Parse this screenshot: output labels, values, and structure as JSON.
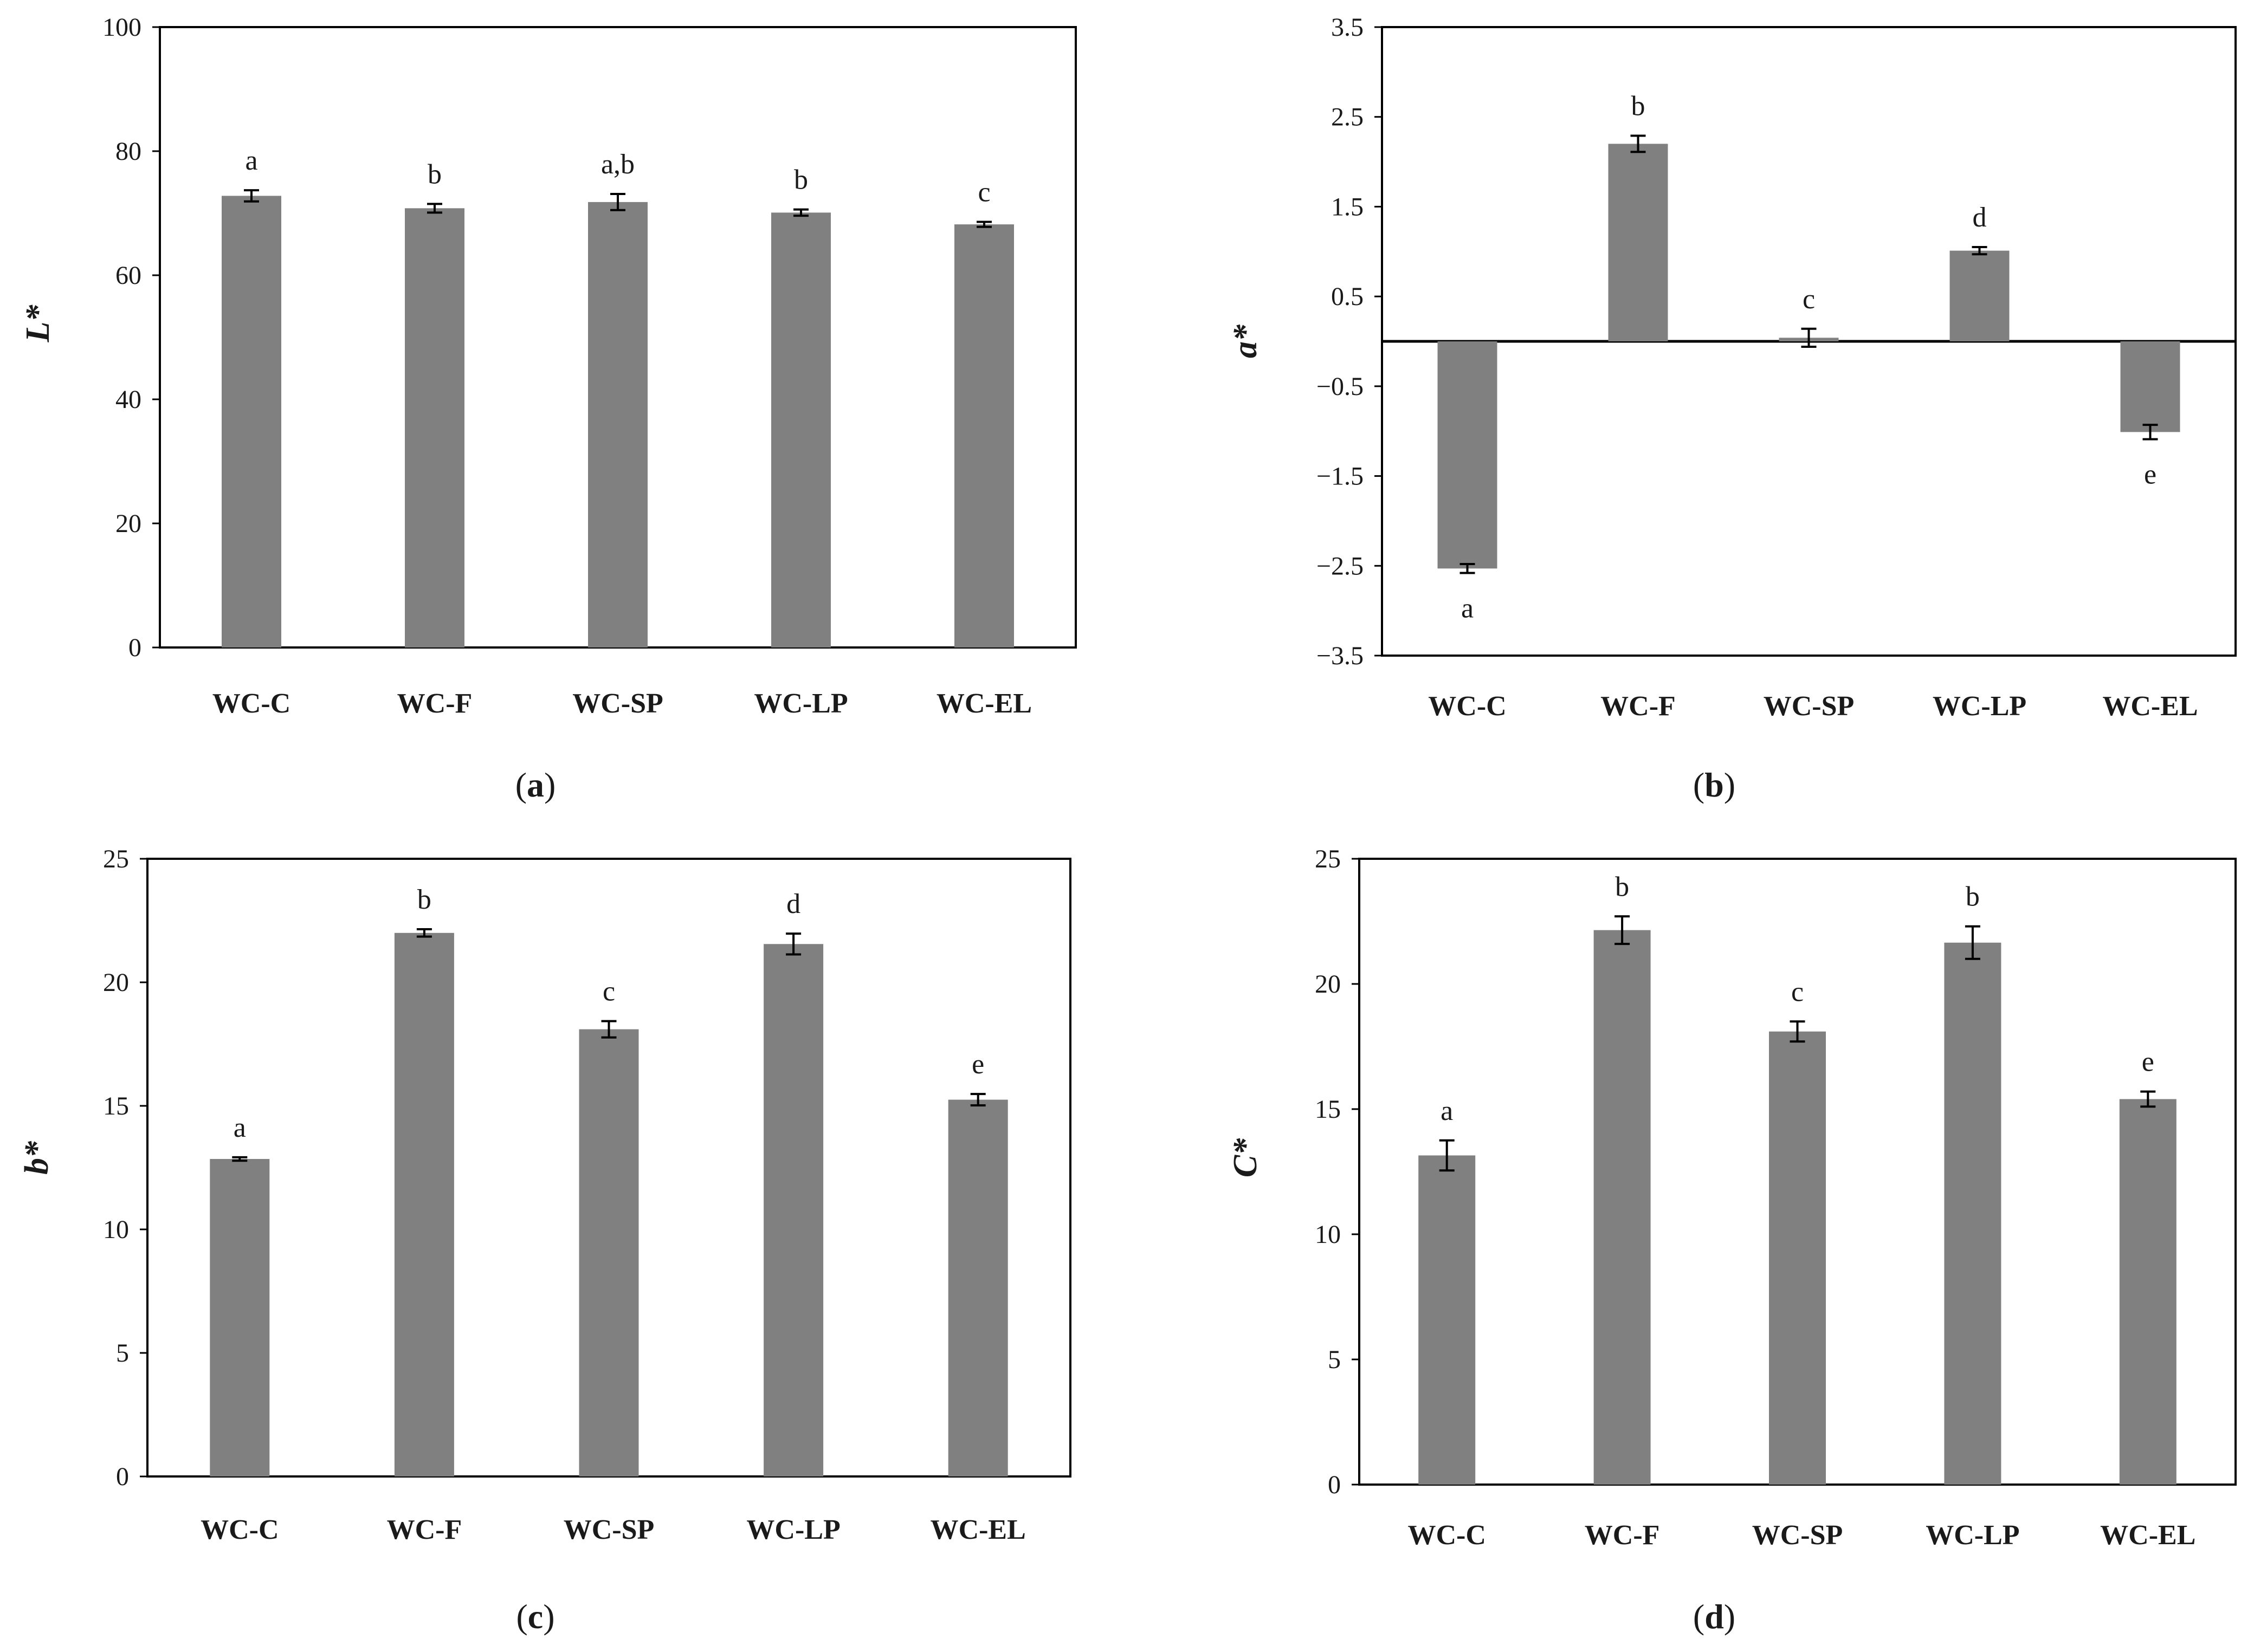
{
  "colors": {
    "bar": "#808080",
    "axis": "#000000",
    "text": "#1a1a1a"
  },
  "chart_data": [
    {
      "type": "bar",
      "panel": "a",
      "caption": {
        "open": "(",
        "letter": "a",
        "close": ")"
      },
      "ylabel": "L*",
      "ylim": [
        0,
        100
      ],
      "yticks": [
        0,
        20,
        40,
        60,
        80,
        100
      ],
      "ytick_labels": [
        "0",
        "20",
        "40",
        "60",
        "80",
        "100"
      ],
      "zero_line": false,
      "categories": [
        "WC-C",
        "WC-F",
        "WC-SP",
        "WC-LP",
        "WC-EL"
      ],
      "values": [
        72.8,
        70.8,
        71.8,
        70.1,
        68.2
      ],
      "errors": [
        0.9,
        0.7,
        1.3,
        0.5,
        0.4
      ],
      "significance": [
        "a",
        "b",
        "a,b",
        "b",
        "c"
      ]
    },
    {
      "type": "bar",
      "panel": "b",
      "caption": {
        "open": "(",
        "letter": "b",
        "close": ")"
      },
      "ylabel": "a*",
      "ylim": [
        -3.5,
        3.5
      ],
      "yticks": [
        3.5,
        2.5,
        1.5,
        0.5,
        -0.5,
        -1.5,
        -2.5,
        -3.5
      ],
      "ytick_labels": [
        "3.5",
        "2.5",
        "1.5",
        "0.5",
        "−0.5",
        "−1.5",
        "−2.5",
        "−3.5"
      ],
      "zero_line": true,
      "categories": [
        "WC-C",
        "WC-F",
        "WC-SP",
        "WC-LP",
        "WC-EL"
      ],
      "values": [
        -2.53,
        2.2,
        0.04,
        1.01,
        -1.01
      ],
      "errors": [
        0.05,
        0.09,
        0.1,
        0.04,
        0.08
      ],
      "significance": [
        "a",
        "b",
        "c",
        "d",
        "e"
      ]
    },
    {
      "type": "bar",
      "panel": "c",
      "caption": {
        "open": "(",
        "letter": "c",
        "close": ")"
      },
      "ylabel": "b*",
      "ylim": [
        0,
        25
      ],
      "yticks": [
        0,
        5,
        10,
        15,
        20,
        25
      ],
      "ytick_labels": [
        "0",
        "5",
        "10",
        "15",
        "20",
        "25"
      ],
      "zero_line": false,
      "categories": [
        "WC-C",
        "WC-F",
        "WC-SP",
        "WC-LP",
        "WC-EL"
      ],
      "values": [
        12.85,
        22.0,
        18.1,
        21.55,
        15.25
      ],
      "errors": [
        0.07,
        0.15,
        0.33,
        0.42,
        0.23
      ],
      "significance": [
        "a",
        "b",
        "c",
        "d",
        "e"
      ]
    },
    {
      "type": "bar",
      "panel": "d",
      "caption": {
        "open": "(",
        "letter": "d",
        "close": ")"
      },
      "ylabel": "C*",
      "ylim": [
        0,
        25
      ],
      "yticks": [
        0,
        5,
        10,
        15,
        20,
        25
      ],
      "ytick_labels": [
        "0",
        "5",
        "10",
        "15",
        "20",
        "25"
      ],
      "zero_line": false,
      "categories": [
        "WC-C",
        "WC-F",
        "WC-SP",
        "WC-LP",
        "WC-EL"
      ],
      "values": [
        13.15,
        22.15,
        18.1,
        21.65,
        15.4
      ],
      "errors": [
        0.6,
        0.55,
        0.4,
        0.65,
        0.3
      ],
      "significance": [
        "a",
        "b",
        "c",
        "b",
        "e"
      ]
    }
  ]
}
